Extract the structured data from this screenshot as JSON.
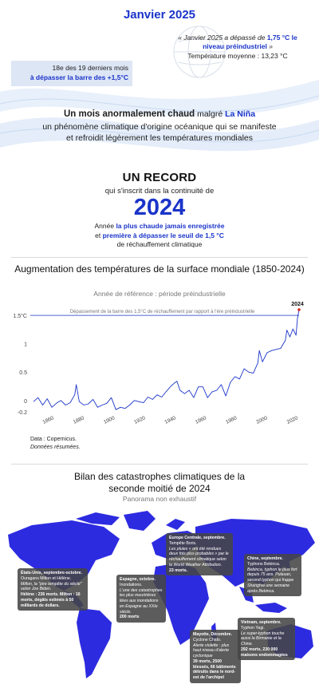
{
  "header": {
    "title": "Janvier 2025",
    "quote_text": "« Janvier 2025 a dépassé de ",
    "quote_bold": "1,75 °C le niveau préindustriel",
    "quote_end": " »",
    "temp_line": "Température moyenne : 13,23 °C",
    "box_line1": "18e des 19 derniers mois",
    "box_line2": "à dépasser la barre des +1,5°C"
  },
  "main_statement": {
    "bold_part": "Un mois anormalement chaud",
    "mid": " malgré ",
    "nina": "La Niña",
    "rest": "un phénomène climatique d'origine océanique qui se manifeste et refroidit légèrement les températures mondiales"
  },
  "record": {
    "title": "UN RECORD",
    "subtitle": "qui s'inscrit dans la continuité de",
    "year": "2024",
    "desc_a": "Année ",
    "desc_b": "la plus chaude jamais enregistrée",
    "desc_c": "et ",
    "desc_d": "première à dépasser le seuil de 1,5 °C",
    "desc_e": "de réchauffement climatique"
  },
  "chart_section": {
    "title": "Augmentation des températures de la surface mondiale (1850-2024)",
    "subtitle": "Année de référence : période préindustrielle",
    "source_line1": "Data : Copernicus.",
    "source_line2": "Données résumées."
  },
  "chart_data": {
    "type": "line",
    "ylim": [
      -0.2,
      1.6
    ],
    "xlim": [
      1850,
      2024
    ],
    "ytick_labels": [
      "1.5°C",
      "1",
      "0.5",
      "0",
      "-0.2"
    ],
    "ytick_values": [
      1.5,
      1,
      0.5,
      0,
      -0.2
    ],
    "xtick_labels": [
      "1860",
      "1880",
      "1900",
      "1920",
      "1940",
      "1960",
      "1980",
      "2000",
      "2020"
    ],
    "xtick_values": [
      1860,
      1880,
      1900,
      1920,
      1940,
      1960,
      1980,
      2000,
      2020
    ],
    "threshold": 1.5,
    "threshold_label": "Dépassement de la barre des 1,5°C de réchauffement par rapport à l'ère préindustrielle",
    "highlight_label": "2024",
    "highlight_x": 2024,
    "highlight_y": 1.6,
    "line_color": "#1a34c9",
    "highlight_color": "#d62828",
    "x": [
      1850,
      1853,
      1856,
      1859,
      1862,
      1865,
      1868,
      1871,
      1874,
      1877,
      1878,
      1880,
      1883,
      1886,
      1889,
      1892,
      1895,
      1898,
      1901,
      1904,
      1907,
      1910,
      1913,
      1916,
      1919,
      1922,
      1925,
      1928,
      1931,
      1934,
      1937,
      1940,
      1942,
      1944,
      1946,
      1949,
      1952,
      1955,
      1958,
      1961,
      1964,
      1967,
      1970,
      1973,
      1976,
      1979,
      1982,
      1985,
      1988,
      1991,
      1994,
      1997,
      1998,
      2000,
      2003,
      2006,
      2009,
      2012,
      2015,
      2016,
      2018,
      2020,
      2022,
      2023,
      2024
    ],
    "y": [
      -0.02,
      0.05,
      -0.08,
      0.03,
      -0.12,
      -0.05,
      0.0,
      -0.08,
      -0.04,
      0.1,
      0.28,
      -0.02,
      -0.08,
      -0.06,
      0.02,
      -0.12,
      -0.08,
      -0.05,
      0.05,
      -0.16,
      -0.12,
      -0.14,
      -0.08,
      0.0,
      -0.02,
      -0.04,
      0.06,
      0.02,
      0.1,
      0.06,
      0.16,
      0.25,
      0.3,
      0.34,
      0.18,
      0.12,
      0.18,
      0.05,
      0.24,
      0.24,
      0.05,
      0.15,
      0.18,
      0.28,
      0.08,
      0.32,
      0.42,
      0.38,
      0.56,
      0.5,
      0.48,
      0.66,
      0.88,
      0.68,
      0.84,
      0.88,
      0.9,
      0.92,
      1.06,
      1.24,
      1.12,
      1.26,
      1.15,
      1.46,
      1.6
    ]
  },
  "bilan": {
    "title": "Bilan des catastrophes climatiques de la seconde moitié de 2024",
    "subtitle": "Panorama non exhaustif",
    "events": [
      {
        "head": "États-Unis, septembre-octobre.",
        "lines": [
          "Ouragans Milton et Hélène."
        ],
        "italic": "Milton, la \"pire tempête du siècle\" selon Joe Biden.",
        "bold": "Hélène : 236 morts. Milton : 16 morts, dégâts estimés à 50 milliards de dollars."
      },
      {
        "head": "Europe Centrale, septembre.",
        "lines": [
          "Tempête Boris."
        ],
        "italic": "Les pluies « ont été rendues deux fois plus probables » par le réchauffement climatique selon la World Weather Attribution.",
        "bold": "23 morts."
      },
      {
        "head": "Chine, septembre.",
        "lines": [
          "Typhons Bebinca."
        ],
        "italic": "Bebinca, typhon le plus fort depuis 75 ans. Pulasan, second typhon qui frappe Shanghai une semaine après Bebinca.",
        "bold": ""
      },
      {
        "head": "Espagne, octobre.",
        "lines": [
          "Inondations."
        ],
        "italic": "L'une des catastrophes les plus meurtrières liées aux inondations en Espagne au XXIe siècle.",
        "bold": "200 morts"
      },
      {
        "head": "Vietnam, septembre.",
        "lines": [
          "Typhon Yagi."
        ],
        "italic": "Le super-typhon touche aussi la Birmanie et la Chine.",
        "bold": "292 morts, 230 000 maisons endommagées"
      },
      {
        "head": "Mayotte, Décembre.",
        "lines": [
          "Cyclone Chido."
        ],
        "italic": "Alerte violette : plus haut niveau d'alerte cyclonique",
        "bold": "39 morts, 2500 blessés, 66 bâtiments détruits dans le nord-est de l'archipel"
      }
    ]
  },
  "colors": {
    "accent": "#1a34c9",
    "map_land": "#2d2be0",
    "threshold_line": "#1a34c9",
    "highlight": "#d62828"
  }
}
